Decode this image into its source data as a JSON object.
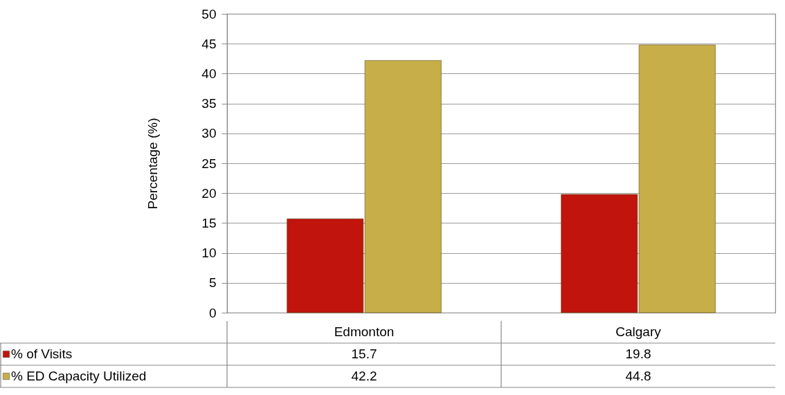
{
  "chart_data": {
    "type": "bar",
    "ylabel": "Percentage (%)",
    "categories": [
      "Edmonton",
      "Calgary"
    ],
    "series": [
      {
        "name": "% of Visits",
        "color": "#c0140c",
        "values": [
          15.7,
          19.8
        ]
      },
      {
        "name": "% ED  Capacity Utilized",
        "color": "#c8ae48",
        "values": [
          42.2,
          44.8
        ]
      }
    ],
    "ylim": [
      0,
      50
    ],
    "yticks": [
      0,
      5,
      10,
      15,
      20,
      25,
      30,
      35,
      40,
      45,
      50
    ],
    "grid": "y",
    "legend": "bottom",
    "data_labels": true
  }
}
